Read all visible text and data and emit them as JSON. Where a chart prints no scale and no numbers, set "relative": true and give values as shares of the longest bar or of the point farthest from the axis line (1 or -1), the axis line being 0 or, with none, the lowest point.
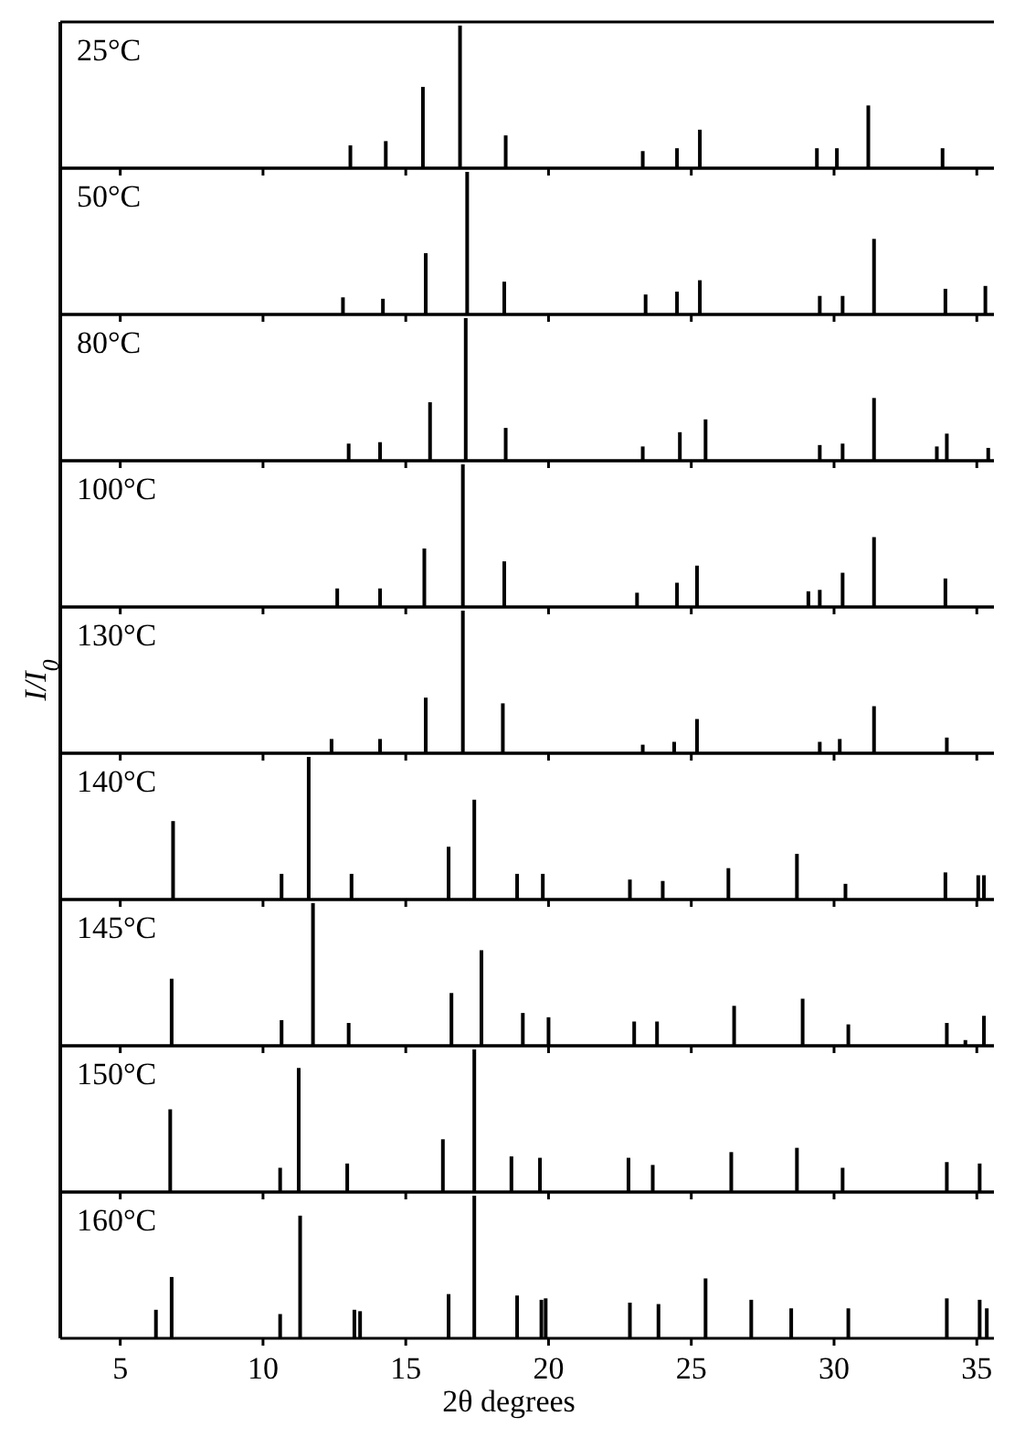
{
  "chart_data": [
    {
      "type": "bar",
      "title": "25°C",
      "relative": true,
      "color": "#000000",
      "xlim": [
        2.9,
        35.6
      ],
      "xticks": [
        5,
        10,
        15,
        20,
        25,
        30,
        35
      ],
      "tick_labels": false,
      "x": [
        13.06,
        14.3,
        15.6,
        16.9,
        18.5,
        23.3,
        24.5,
        25.3,
        29.4,
        30.1,
        31.2,
        33.8
      ],
      "values": [
        0.16,
        0.19,
        0.57,
        1,
        0.23,
        0.12,
        0.14,
        0.27,
        0.14,
        0.14,
        0.44,
        0.14
      ]
    },
    {
      "type": "bar",
      "title": "50°C",
      "relative": true,
      "color": "#000000",
      "xlim": [
        2.9,
        35.6
      ],
      "xticks": [
        5,
        10,
        15,
        20,
        25,
        30,
        35
      ],
      "tick_labels": false,
      "x": [
        12.8,
        14.2,
        15.7,
        17.15,
        18.45,
        23.4,
        24.5,
        25.3,
        29.5,
        30.3,
        31.4,
        33.9,
        35.3
      ],
      "values": [
        0.12,
        0.11,
        0.43,
        1,
        0.23,
        0.14,
        0.16,
        0.24,
        0.13,
        0.13,
        0.53,
        0.18,
        0.2
      ]
    },
    {
      "type": "bar",
      "title": "80°C",
      "relative": true,
      "color": "#000000",
      "xlim": [
        2.9,
        35.6
      ],
      "xticks": [
        5,
        10,
        15,
        20,
        25,
        30,
        35
      ],
      "tick_labels": false,
      "x": [
        13.0,
        14.1,
        15.85,
        17.1,
        18.5,
        23.3,
        24.6,
        25.5,
        29.5,
        30.3,
        31.4,
        33.6,
        33.95,
        35.4
      ],
      "values": [
        0.12,
        0.13,
        0.41,
        1,
        0.23,
        0.1,
        0.2,
        0.29,
        0.11,
        0.12,
        0.44,
        0.1,
        0.19,
        0.09
      ]
    },
    {
      "type": "bar",
      "title": "100°C",
      "relative": true,
      "color": "#000000",
      "xlim": [
        2.9,
        35.6
      ],
      "xticks": [
        5,
        10,
        15,
        20,
        25,
        30,
        35
      ],
      "tick_labels": false,
      "x": [
        12.6,
        14.1,
        15.65,
        17.0,
        18.45,
        23.1,
        24.5,
        25.2,
        29.1,
        29.5,
        30.3,
        31.4,
        33.9
      ],
      "values": [
        0.13,
        0.13,
        0.41,
        1,
        0.32,
        0.1,
        0.17,
        0.29,
        0.11,
        0.12,
        0.24,
        0.49,
        0.2
      ]
    },
    {
      "type": "bar",
      "title": "130°C",
      "ylabel": "I/I$_{0}$",
      "relative": true,
      "color": "#000000",
      "xlim": [
        2.9,
        35.6
      ],
      "xticks": [
        5,
        10,
        15,
        20,
        25,
        30,
        35
      ],
      "tick_labels": false,
      "x": [
        12.4,
        14.1,
        15.7,
        17.0,
        18.4,
        23.3,
        24.4,
        25.2,
        29.5,
        30.2,
        31.4,
        33.95
      ],
      "values": [
        0.1,
        0.1,
        0.39,
        1,
        0.35,
        0.06,
        0.08,
        0.24,
        0.08,
        0.1,
        0.33,
        0.11
      ]
    },
    {
      "type": "bar",
      "title": "140°C",
      "relative": true,
      "color": "#000000",
      "xlim": [
        2.9,
        35.6
      ],
      "xticks": [
        5,
        10,
        15,
        20,
        25,
        30,
        35
      ],
      "tick_labels": false,
      "x": [
        6.85,
        10.65,
        11.6,
        13.1,
        16.5,
        17.4,
        18.9,
        19.8,
        22.85,
        24.0,
        26.3,
        28.7,
        30.4,
        33.9,
        35.05,
        35.25
      ],
      "values": [
        0.55,
        0.18,
        1,
        0.18,
        0.37,
        0.7,
        0.18,
        0.18,
        0.14,
        0.13,
        0.22,
        0.32,
        0.11,
        0.19,
        0.17,
        0.17
      ]
    },
    {
      "type": "bar",
      "title": "145°C",
      "relative": true,
      "color": "#000000",
      "xlim": [
        2.9,
        35.6
      ],
      "xticks": [
        5,
        10,
        15,
        20,
        25,
        30,
        35
      ],
      "tick_labels": false,
      "x": [
        6.8,
        10.65,
        11.75,
        13.0,
        16.6,
        17.65,
        19.1,
        20.0,
        23.0,
        23.8,
        26.5,
        28.9,
        30.5,
        33.95,
        34.6,
        35.25
      ],
      "values": [
        0.47,
        0.18,
        1,
        0.16,
        0.37,
        0.67,
        0.23,
        0.2,
        0.17,
        0.17,
        0.28,
        0.33,
        0.15,
        0.16,
        0.04,
        0.21
      ]
    },
    {
      "type": "bar",
      "title": "150°C",
      "relative": true,
      "color": "#000000",
      "xlim": [
        2.9,
        35.6
      ],
      "xticks": [
        5,
        10,
        15,
        20,
        25,
        30,
        35
      ],
      "tick_labels": false,
      "x": [
        6.75,
        10.6,
        11.25,
        12.95,
        16.3,
        17.4,
        18.7,
        19.7,
        22.8,
        23.65,
        26.4,
        28.7,
        30.3,
        33.95,
        35.1
      ],
      "values": [
        0.58,
        0.17,
        0.87,
        0.2,
        0.37,
        1,
        0.25,
        0.24,
        0.24,
        0.19,
        0.28,
        0.31,
        0.17,
        0.21,
        0.2
      ]
    },
    {
      "type": "bar",
      "title": "160°C",
      "xlabel": "2θ degrees",
      "relative": true,
      "color": "#000000",
      "xlim": [
        2.9,
        35.6
      ],
      "xticks": [
        5,
        10,
        15,
        20,
        25,
        30,
        35
      ],
      "tick_labels": "x",
      "x": [
        6.25,
        6.8,
        10.6,
        11.3,
        13.2,
        13.4,
        16.5,
        17.4,
        18.9,
        19.75,
        19.9,
        22.85,
        23.85,
        25.5,
        27.1,
        28.5,
        30.5,
        33.95,
        35.1,
        35.35
      ],
      "values": [
        0.2,
        0.43,
        0.17,
        0.86,
        0.2,
        0.19,
        0.31,
        1,
        0.3,
        0.27,
        0.28,
        0.25,
        0.24,
        0.42,
        0.27,
        0.21,
        0.21,
        0.28,
        0.27,
        0.21
      ]
    }
  ]
}
